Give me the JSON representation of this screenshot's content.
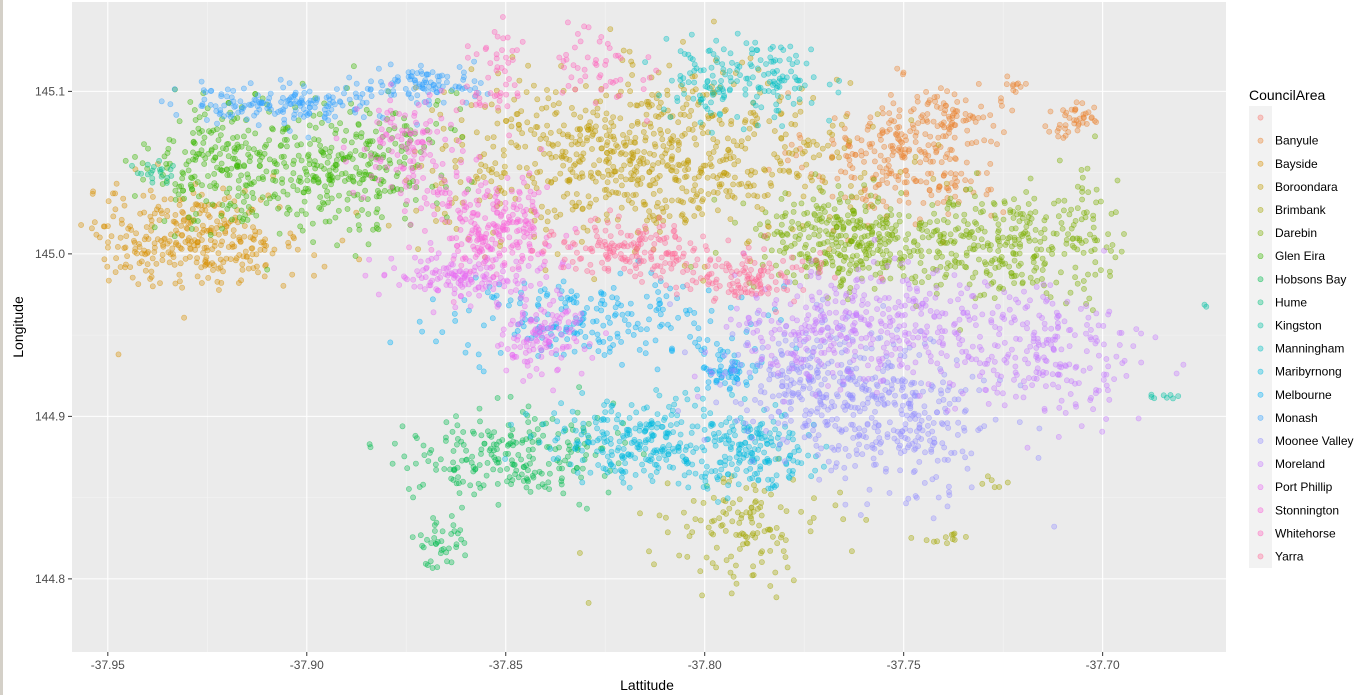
{
  "chart_data": {
    "type": "scatter",
    "xlabel": "Lattitude",
    "ylabel": "Longitude",
    "xlim": [
      -37.959,
      -37.669
    ],
    "ylim": [
      144.755,
      145.155
    ],
    "x_ticks": [
      -37.95,
      -37.9,
      -37.85,
      -37.8,
      -37.75,
      -37.7
    ],
    "x_tick_labels": [
      "-37.95",
      "-37.90",
      "-37.85",
      "-37.80",
      "-37.75",
      "-37.70"
    ],
    "y_ticks": [
      144.8,
      144.9,
      145.0,
      145.1
    ],
    "y_tick_labels": [
      "144.8",
      "144.9",
      "145.0",
      "145.1"
    ],
    "grid": true,
    "point_alpha": 0.35,
    "legend": {
      "title": "CouncilArea",
      "placement": "right",
      "entries": [
        {
          "name": "",
          "color": "#F8766D"
        },
        {
          "name": "Banyule",
          "color": "#EA8331"
        },
        {
          "name": "Bayside",
          "color": "#D89000"
        },
        {
          "name": "Boroondara",
          "color": "#C09B00"
        },
        {
          "name": "Brimbank",
          "color": "#A3A500"
        },
        {
          "name": "Darebin",
          "color": "#7CAE00"
        },
        {
          "name": "Glen Eira",
          "color": "#39B600"
        },
        {
          "name": "Hobsons Bay",
          "color": "#00BB4E"
        },
        {
          "name": "Hume",
          "color": "#00BF7D"
        },
        {
          "name": "Kingston",
          "color": "#00C1A3"
        },
        {
          "name": "Manningham",
          "color": "#00BFC4"
        },
        {
          "name": "Maribyrnong",
          "color": "#00BAE0"
        },
        {
          "name": "Melbourne",
          "color": "#00B0F6"
        },
        {
          "name": "Monash",
          "color": "#35A2FF"
        },
        {
          "name": "Moonee Valley",
          "color": "#9590FF"
        },
        {
          "name": "Moreland",
          "color": "#C77CFF"
        },
        {
          "name": "Port Phillip",
          "color": "#E76BF3"
        },
        {
          "name": "Stonnington",
          "color": "#FA62DB"
        },
        {
          "name": "Whitehorse",
          "color": "#FF62BC"
        },
        {
          "name": "Yarra",
          "color": "#FF6A98"
        }
      ]
    },
    "clusters": [
      {
        "series": "Banyule",
        "x": -37.75,
        "y": 145.06,
        "sx": 0.012,
        "sy": 0.02,
        "n": 260
      },
      {
        "series": "Banyule",
        "x": -37.738,
        "y": 145.085,
        "sx": 0.006,
        "sy": 0.01,
        "n": 60
      },
      {
        "series": "Banyule",
        "x": -37.707,
        "y": 145.082,
        "sx": 0.004,
        "sy": 0.006,
        "n": 40
      },
      {
        "series": "Banyule",
        "x": -37.723,
        "y": 145.104,
        "sx": 0.002,
        "sy": 0.002,
        "n": 10
      },
      {
        "series": "Bayside",
        "x": -37.928,
        "y": 145.01,
        "sx": 0.014,
        "sy": 0.015,
        "n": 330
      },
      {
        "series": "Bayside",
        "x": -37.946,
        "y": 144.94,
        "sx": 0.001,
        "sy": 0.001,
        "n": 1
      },
      {
        "series": "Boroondara",
        "x": -37.815,
        "y": 145.06,
        "sx": 0.026,
        "sy": 0.025,
        "n": 760
      },
      {
        "series": "Brimbank",
        "x": -37.79,
        "y": 144.83,
        "sx": 0.01,
        "sy": 0.016,
        "n": 130
      },
      {
        "series": "Brimbank",
        "x": -37.74,
        "y": 144.825,
        "sx": 0.004,
        "sy": 0.003,
        "n": 12
      },
      {
        "series": "Brimbank",
        "x": -37.727,
        "y": 144.86,
        "sx": 0.002,
        "sy": 0.002,
        "n": 6
      },
      {
        "series": "Darebin",
        "x": -37.765,
        "y": 145.008,
        "sx": 0.012,
        "sy": 0.016,
        "n": 330
      },
      {
        "series": "Darebin",
        "x": -37.73,
        "y": 145.005,
        "sx": 0.012,
        "sy": 0.016,
        "n": 250
      },
      {
        "series": "Darebin",
        "x": -37.705,
        "y": 145.01,
        "sx": 0.006,
        "sy": 0.022,
        "n": 80
      },
      {
        "series": "Glen Eira",
        "x": -37.92,
        "y": 145.055,
        "sx": 0.01,
        "sy": 0.018,
        "n": 230
      },
      {
        "series": "Glen Eira",
        "x": -37.89,
        "y": 145.055,
        "sx": 0.012,
        "sy": 0.022,
        "n": 300
      },
      {
        "series": "Hobsons Bay",
        "x": -37.848,
        "y": 144.876,
        "sx": 0.013,
        "sy": 0.014,
        "n": 230
      },
      {
        "series": "Hobsons Bay",
        "x": -37.867,
        "y": 144.822,
        "sx": 0.003,
        "sy": 0.01,
        "n": 40
      },
      {
        "series": "Hume",
        "x": -37.938,
        "y": 145.05,
        "sx": 0.003,
        "sy": 0.003,
        "n": 20
      },
      {
        "series": "Kingston",
        "x": -37.685,
        "y": 144.912,
        "sx": 0.002,
        "sy": 0.002,
        "n": 8
      },
      {
        "series": "Kingston",
        "x": -37.675,
        "y": 144.968,
        "sx": 0.001,
        "sy": 0.001,
        "n": 2
      },
      {
        "series": "Manningham",
        "x": -37.79,
        "y": 145.108,
        "sx": 0.01,
        "sy": 0.012,
        "n": 170
      },
      {
        "series": "Maribyrnong",
        "x": -37.815,
        "y": 144.885,
        "sx": 0.012,
        "sy": 0.012,
        "n": 260
      },
      {
        "series": "Maribyrnong",
        "x": -37.788,
        "y": 144.88,
        "sx": 0.007,
        "sy": 0.012,
        "n": 170
      },
      {
        "series": "Melbourne",
        "x": -37.825,
        "y": 144.96,
        "sx": 0.02,
        "sy": 0.012,
        "n": 220
      },
      {
        "series": "Melbourne",
        "x": -37.795,
        "y": 144.928,
        "sx": 0.004,
        "sy": 0.005,
        "n": 60
      },
      {
        "series": "Monash",
        "x": -37.905,
        "y": 145.092,
        "sx": 0.014,
        "sy": 0.006,
        "n": 170
      },
      {
        "series": "Monash",
        "x": -37.87,
        "y": 145.105,
        "sx": 0.008,
        "sy": 0.005,
        "n": 90
      },
      {
        "series": "Moonee Valley",
        "x": -37.77,
        "y": 144.92,
        "sx": 0.013,
        "sy": 0.02,
        "n": 320
      },
      {
        "series": "Moonee Valley",
        "x": -37.75,
        "y": 144.89,
        "sx": 0.012,
        "sy": 0.022,
        "n": 220
      },
      {
        "series": "Moreland",
        "x": -37.76,
        "y": 144.955,
        "sx": 0.016,
        "sy": 0.018,
        "n": 360
      },
      {
        "series": "Moreland",
        "x": -37.715,
        "y": 144.94,
        "sx": 0.012,
        "sy": 0.02,
        "n": 230
      },
      {
        "series": "Port Phillip",
        "x": -37.86,
        "y": 144.985,
        "sx": 0.01,
        "sy": 0.008,
        "n": 150
      },
      {
        "series": "Port Phillip",
        "x": -37.842,
        "y": 144.948,
        "sx": 0.006,
        "sy": 0.012,
        "n": 120
      },
      {
        "series": "Stonnington",
        "x": -37.853,
        "y": 145.015,
        "sx": 0.008,
        "sy": 0.014,
        "n": 230
      },
      {
        "series": "Stonnington",
        "x": -37.875,
        "y": 145.065,
        "sx": 0.006,
        "sy": 0.02,
        "n": 120
      },
      {
        "series": "Whitehorse",
        "x": -37.852,
        "y": 145.11,
        "sx": 0.005,
        "sy": 0.015,
        "n": 50
      },
      {
        "series": "Whitehorse",
        "x": -37.827,
        "y": 145.115,
        "sx": 0.007,
        "sy": 0.012,
        "n": 50
      },
      {
        "series": "Yarra",
        "x": -37.818,
        "y": 145.003,
        "sx": 0.01,
        "sy": 0.008,
        "n": 160
      },
      {
        "series": "Yarra",
        "x": -37.792,
        "y": 144.985,
        "sx": 0.01,
        "sy": 0.008,
        "n": 130
      }
    ]
  }
}
